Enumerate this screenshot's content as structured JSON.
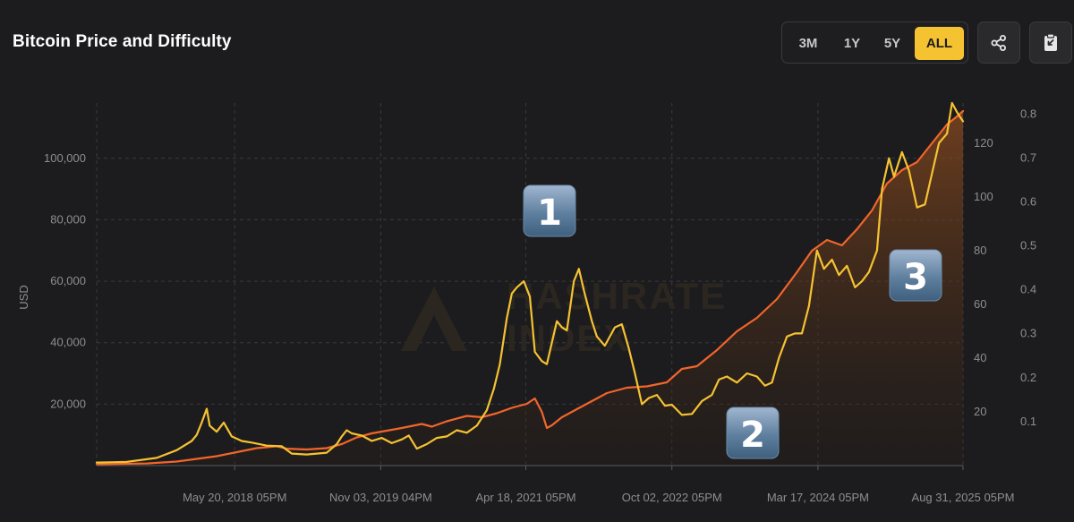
{
  "header": {
    "title": "Bitcoin Price and Difficulty",
    "ranges": [
      "3M",
      "1Y",
      "5Y",
      "ALL"
    ],
    "active_range": "ALL",
    "share_icon": "share-icon",
    "clipboard_icon": "clipboard-icon"
  },
  "colors": {
    "price": "#f5c232",
    "difficulty": "#f2652b",
    "accent": "#f5c232",
    "background": "#1c1c1e",
    "grid": "#3a3a3c"
  },
  "watermark": {
    "line1": "HASHRATE",
    "line2": "INDEX"
  },
  "badges": [
    "1",
    "2",
    "3"
  ],
  "chart_data": {
    "type": "line",
    "title": "Bitcoin Price and Difficulty",
    "ylabel": "USD",
    "x_ticks": [
      "May 20, 2018 05PM",
      "Nov 03, 2019 04PM",
      "Apr 18, 2021 05PM",
      "Oct 02, 2022 05PM",
      "Mar 17, 2024 05PM",
      "Aug 31, 2025 05PM"
    ],
    "x_tick_years": [
      2018.38,
      2019.84,
      2021.29,
      2022.75,
      2024.21,
      2025.66
    ],
    "xlim": [
      2017.0,
      2025.66
    ],
    "y_left": {
      "ticks": [
        "20,000",
        "40,000",
        "60,000",
        "80,000",
        "100,000"
      ],
      "tick_values": [
        20000,
        40000,
        60000,
        80000,
        100000
      ],
      "ylim": [
        0,
        118000
      ]
    },
    "y_mid": {
      "ticks": [
        "20",
        "40",
        "60",
        "80",
        "100",
        "120"
      ],
      "tick_values": [
        20,
        40,
        60,
        80,
        100,
        120
      ],
      "ylim": [
        0,
        135
      ]
    },
    "y_right": {
      "ticks": [
        "0.1",
        "0.2",
        "0.3",
        "0.4",
        "0.5",
        "0.6",
        "0.7",
        "0.8"
      ],
      "tick_values": [
        0.1,
        0.2,
        0.3,
        0.4,
        0.5,
        0.6,
        0.7,
        0.8
      ],
      "ylim": [
        0,
        0.825
      ]
    },
    "grid": true,
    "series": [
      {
        "color": "#f5c232",
        "axis": "left",
        "points": [
          [
            2017.0,
            1000
          ],
          [
            2017.3,
            1200
          ],
          [
            2017.6,
            2500
          ],
          [
            2017.8,
            5000
          ],
          [
            2017.95,
            8000
          ],
          [
            2018.0,
            10000
          ],
          [
            2018.05,
            14000
          ],
          [
            2018.1,
            18500
          ],
          [
            2018.13,
            13000
          ],
          [
            2018.2,
            11000
          ],
          [
            2018.27,
            14000
          ],
          [
            2018.35,
            9500
          ],
          [
            2018.45,
            8000
          ],
          [
            2018.55,
            7500
          ],
          [
            2018.7,
            6500
          ],
          [
            2018.85,
            6300
          ],
          [
            2018.95,
            3900
          ],
          [
            2019.1,
            3600
          ],
          [
            2019.3,
            4200
          ],
          [
            2019.4,
            7000
          ],
          [
            2019.45,
            9500
          ],
          [
            2019.5,
            11500
          ],
          [
            2019.55,
            10500
          ],
          [
            2019.65,
            9800
          ],
          [
            2019.75,
            8000
          ],
          [
            2019.85,
            9000
          ],
          [
            2019.95,
            7300
          ],
          [
            2020.05,
            8500
          ],
          [
            2020.12,
            9800
          ],
          [
            2020.2,
            5500
          ],
          [
            2020.3,
            7000
          ],
          [
            2020.4,
            9000
          ],
          [
            2020.5,
            9500
          ],
          [
            2020.6,
            11500
          ],
          [
            2020.7,
            10700
          ],
          [
            2020.8,
            13000
          ],
          [
            2020.9,
            18000
          ],
          [
            2020.97,
            25000
          ],
          [
            2021.03,
            33000
          ],
          [
            2021.1,
            48000
          ],
          [
            2021.15,
            56000
          ],
          [
            2021.2,
            58000
          ],
          [
            2021.27,
            60000
          ],
          [
            2021.33,
            55000
          ],
          [
            2021.38,
            37000
          ],
          [
            2021.45,
            34000
          ],
          [
            2021.5,
            33000
          ],
          [
            2021.55,
            40000
          ],
          [
            2021.6,
            47000
          ],
          [
            2021.65,
            45000
          ],
          [
            2021.7,
            44000
          ],
          [
            2021.77,
            60000
          ],
          [
            2021.82,
            64000
          ],
          [
            2021.87,
            57000
          ],
          [
            2021.95,
            47000
          ],
          [
            2022.0,
            42000
          ],
          [
            2022.08,
            39000
          ],
          [
            2022.18,
            45000
          ],
          [
            2022.25,
            46000
          ],
          [
            2022.32,
            38000
          ],
          [
            2022.38,
            30000
          ],
          [
            2022.45,
            20000
          ],
          [
            2022.52,
            22000
          ],
          [
            2022.6,
            23000
          ],
          [
            2022.68,
            19500
          ],
          [
            2022.75,
            19800
          ],
          [
            2022.85,
            16500
          ],
          [
            2022.95,
            16800
          ],
          [
            2023.05,
            21000
          ],
          [
            2023.15,
            23000
          ],
          [
            2023.22,
            28000
          ],
          [
            2023.3,
            29000
          ],
          [
            2023.4,
            27000
          ],
          [
            2023.5,
            30000
          ],
          [
            2023.6,
            29000
          ],
          [
            2023.68,
            26000
          ],
          [
            2023.75,
            27000
          ],
          [
            2023.82,
            35000
          ],
          [
            2023.9,
            42000
          ],
          [
            2023.98,
            43000
          ],
          [
            2024.05,
            43000
          ],
          [
            2024.12,
            52000
          ],
          [
            2024.2,
            70000
          ],
          [
            2024.27,
            64000
          ],
          [
            2024.35,
            67000
          ],
          [
            2024.42,
            62000
          ],
          [
            2024.5,
            65000
          ],
          [
            2024.58,
            58000
          ],
          [
            2024.65,
            60000
          ],
          [
            2024.72,
            63000
          ],
          [
            2024.8,
            70000
          ],
          [
            2024.85,
            90000
          ],
          [
            2024.92,
            100000
          ],
          [
            2024.97,
            94000
          ],
          [
            2025.05,
            102000
          ],
          [
            2025.12,
            96000
          ],
          [
            2025.2,
            84000
          ],
          [
            2025.28,
            85000
          ],
          [
            2025.35,
            95000
          ],
          [
            2025.42,
            105000
          ],
          [
            2025.5,
            108000
          ],
          [
            2025.55,
            118000
          ],
          [
            2025.6,
            115000
          ],
          [
            2025.66,
            112000
          ]
        ]
      },
      {
        "color": "#f2652b",
        "axis": "mid",
        "points": [
          [
            2017.0,
            0.5
          ],
          [
            2017.5,
            0.8
          ],
          [
            2017.8,
            1.5
          ],
          [
            2018.0,
            2.5
          ],
          [
            2018.2,
            3.5
          ],
          [
            2018.4,
            5.0
          ],
          [
            2018.6,
            6.5
          ],
          [
            2018.8,
            7.2
          ],
          [
            2018.9,
            6.3
          ],
          [
            2019.1,
            6.0
          ],
          [
            2019.3,
            6.5
          ],
          [
            2019.45,
            8.0
          ],
          [
            2019.6,
            10.5
          ],
          [
            2019.75,
            12.0
          ],
          [
            2019.9,
            13.0
          ],
          [
            2020.05,
            14.0
          ],
          [
            2020.25,
            15.5
          ],
          [
            2020.35,
            14.5
          ],
          [
            2020.5,
            16.5
          ],
          [
            2020.7,
            18.5
          ],
          [
            2020.85,
            18.0
          ],
          [
            2021.0,
            19.5
          ],
          [
            2021.15,
            21.5
          ],
          [
            2021.3,
            23.0
          ],
          [
            2021.38,
            25.0
          ],
          [
            2021.45,
            20.0
          ],
          [
            2021.5,
            14.0
          ],
          [
            2021.55,
            15.0
          ],
          [
            2021.65,
            18.0
          ],
          [
            2021.8,
            21.0
          ],
          [
            2021.95,
            24.0
          ],
          [
            2022.1,
            27.0
          ],
          [
            2022.3,
            29.0
          ],
          [
            2022.5,
            29.5
          ],
          [
            2022.7,
            31.0
          ],
          [
            2022.85,
            36.0
          ],
          [
            2023.0,
            37.0
          ],
          [
            2023.2,
            43.0
          ],
          [
            2023.4,
            50.0
          ],
          [
            2023.6,
            55.0
          ],
          [
            2023.8,
            62.0
          ],
          [
            2024.0,
            72.0
          ],
          [
            2024.15,
            80.0
          ],
          [
            2024.3,
            84.0
          ],
          [
            2024.45,
            82.0
          ],
          [
            2024.6,
            88.0
          ],
          [
            2024.75,
            95.0
          ],
          [
            2024.9,
            105.0
          ],
          [
            2025.05,
            110.0
          ],
          [
            2025.2,
            113.0
          ],
          [
            2025.35,
            120.0
          ],
          [
            2025.5,
            127.0
          ],
          [
            2025.6,
            130.0
          ],
          [
            2025.66,
            132.0
          ]
        ]
      }
    ]
  }
}
